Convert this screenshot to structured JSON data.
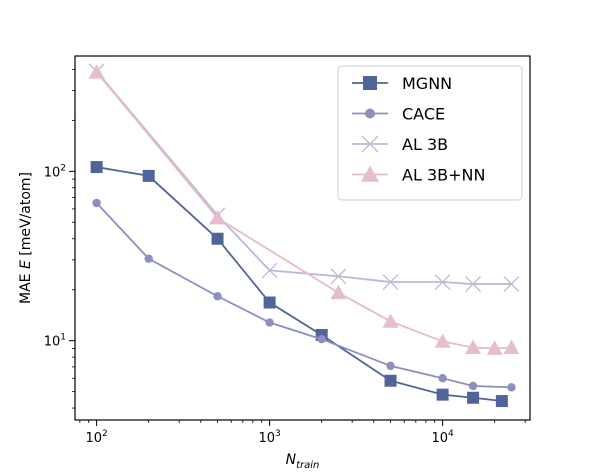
{
  "chart_data": {
    "type": "line",
    "title": "",
    "xlabel": "N",
    "xlabel_sub": "train",
    "ylabel": "MAE E [meV/atom]",
    "x_scale": "log",
    "y_scale": "log",
    "xlim": [
      75,
      32000
    ],
    "ylim": [
      3.4,
      480
    ],
    "x_ticks": [
      {
        "value": 100,
        "base": "10",
        "exp": "2"
      },
      {
        "value": 1000,
        "base": "10",
        "exp": "3"
      },
      {
        "value": 10000,
        "base": "10",
        "exp": "4"
      }
    ],
    "y_ticks": [
      {
        "value": 10,
        "base": "10",
        "exp": "1"
      },
      {
        "value": 100,
        "base": "10",
        "exp": "2"
      }
    ],
    "grid": false,
    "legend_position": "top-right",
    "series": [
      {
        "name": "MGNN",
        "color": "#4f6498",
        "marker": "square",
        "x": [
          100,
          200,
          500,
          1000,
          2000,
          5000,
          10000,
          15000,
          22000
        ],
        "y": [
          106,
          94,
          40,
          16.8,
          10.8,
          5.8,
          4.8,
          4.6,
          4.4
        ]
      },
      {
        "name": "CACE",
        "color": "#8d8fbf",
        "marker": "circle",
        "x": [
          100,
          200,
          500,
          1000,
          2000,
          5000,
          10000,
          15000,
          25000
        ],
        "y": [
          65,
          30.5,
          18.3,
          12.8,
          10.2,
          7.1,
          6.0,
          5.4,
          5.3
        ]
      },
      {
        "name": "AL 3B",
        "color": "#bdb7d8",
        "marker": "x",
        "x": [
          100,
          500,
          1000,
          2500,
          5000,
          10000,
          15000,
          25000
        ],
        "y": [
          390,
          55,
          26,
          24,
          22.2,
          22.2,
          21.6,
          21.6
        ]
      },
      {
        "name": "AL 3B+NN",
        "color": "#e6bdca",
        "marker": "triangle",
        "x": [
          100,
          500,
          2500,
          5000,
          10000,
          15000,
          20000,
          25000
        ],
        "y": [
          385,
          53,
          19.2,
          13,
          9.9,
          9.1,
          9.0,
          9.1
        ]
      }
    ]
  }
}
